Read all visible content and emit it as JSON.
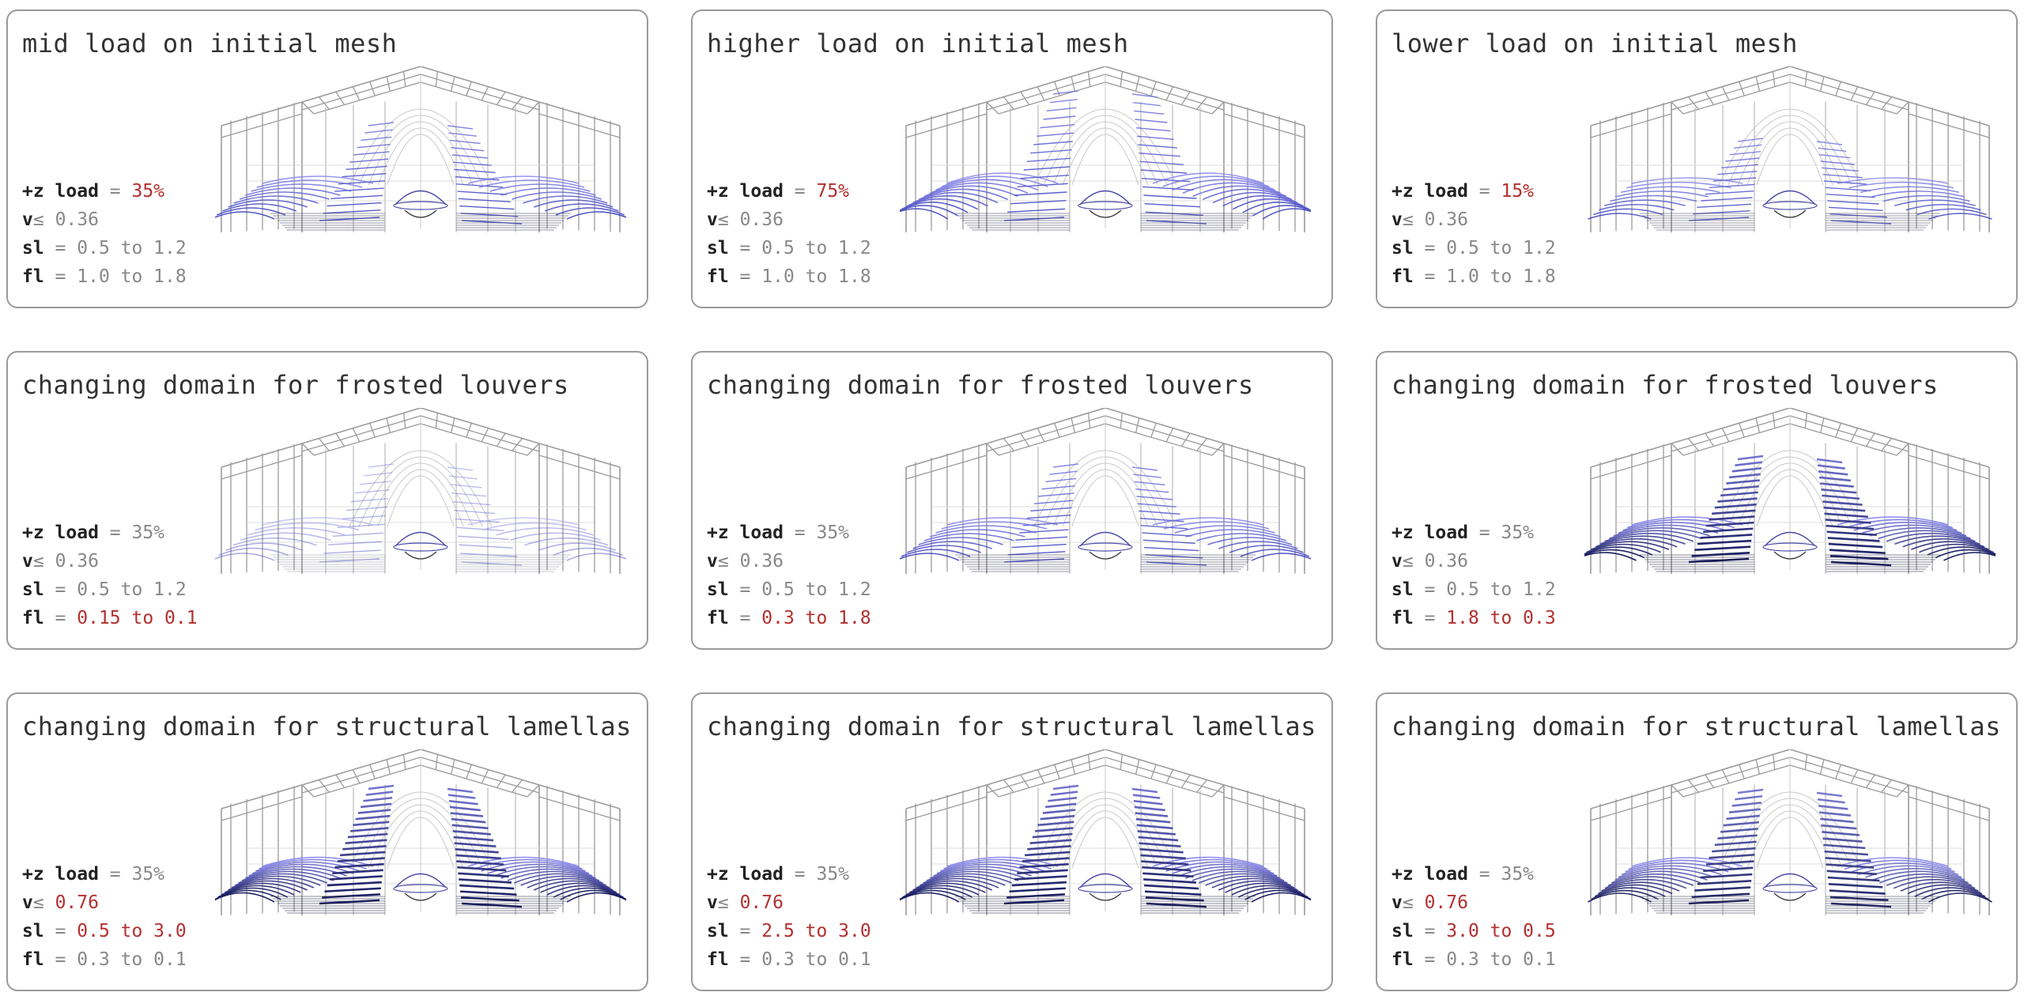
{
  "colors": {
    "highlight": "#b3302f",
    "frame": "#9a9a9a",
    "fan_light": "#7070e8",
    "fan_dark": "#1e2270"
  },
  "panels": [
    {
      "title": "mid load on initial mesh",
      "variant": "standard",
      "params": [
        {
          "key": "+z load",
          "sep": " = ",
          "value": "35%",
          "hl": true
        },
        {
          "key": "v",
          "sep": "≤ ",
          "value": "0.36",
          "hl": false
        },
        {
          "key": "sl",
          "sep": " = ",
          "value": "0.5 to 1.2",
          "hl": false
        },
        {
          "key": "fl",
          "sep": " = ",
          "value": "1.0 to 1.8",
          "hl": false
        }
      ]
    },
    {
      "title": "higher load on initial mesh",
      "variant": "high",
      "params": [
        {
          "key": "+z load",
          "sep": " = ",
          "value": "75%",
          "hl": true
        },
        {
          "key": "v",
          "sep": "≤ ",
          "value": "0.36",
          "hl": false
        },
        {
          "key": "sl",
          "sep": " = ",
          "value": "0.5 to 1.2",
          "hl": false
        },
        {
          "key": "fl",
          "sep": " = ",
          "value": "1.0 to 1.8",
          "hl": false
        }
      ]
    },
    {
      "title": "lower load on initial mesh",
      "variant": "low",
      "params": [
        {
          "key": "+z load",
          "sep": " = ",
          "value": "15%",
          "hl": true
        },
        {
          "key": "v",
          "sep": "≤ ",
          "value": "0.36",
          "hl": false
        },
        {
          "key": "sl",
          "sep": " = ",
          "value": "0.5 to 1.2",
          "hl": false
        },
        {
          "key": "fl",
          "sep": " = ",
          "value": "1.0 to 1.8",
          "hl": false
        }
      ]
    },
    {
      "title": "changing domain for frosted louvers",
      "variant": "faint",
      "params": [
        {
          "key": "+z load",
          "sep": " = ",
          "value": "35%",
          "hl": false
        },
        {
          "key": "v",
          "sep": "≤ ",
          "value": "0.36",
          "hl": false
        },
        {
          "key": "sl",
          "sep": " = ",
          "value": "0.5 to 1.2",
          "hl": false
        },
        {
          "key": "fl",
          "sep": " = ",
          "value": "0.15 to 0.1",
          "hl": true
        }
      ]
    },
    {
      "title": "changing domain for frosted louvers",
      "variant": "standard",
      "params": [
        {
          "key": "+z load",
          "sep": " = ",
          "value": "35%",
          "hl": false
        },
        {
          "key": "v",
          "sep": "≤ ",
          "value": "0.36",
          "hl": false
        },
        {
          "key": "sl",
          "sep": " = ",
          "value": "0.5 to 1.2",
          "hl": false
        },
        {
          "key": "fl",
          "sep": " = ",
          "value": "0.3 to 1.8",
          "hl": true
        }
      ]
    },
    {
      "title": "changing domain for frosted louvers",
      "variant": "heavy",
      "params": [
        {
          "key": "+z load",
          "sep": " = ",
          "value": "35%",
          "hl": false
        },
        {
          "key": "v",
          "sep": "≤ ",
          "value": "0.36",
          "hl": false
        },
        {
          "key": "sl",
          "sep": " = ",
          "value": "0.5 to 1.2",
          "hl": false
        },
        {
          "key": "fl",
          "sep": " = ",
          "value": "1.8 to 0.3",
          "hl": true
        }
      ]
    },
    {
      "title": "changing domain for structural lamellas",
      "variant": "dark",
      "params": [
        {
          "key": "+z load",
          "sep": " = ",
          "value": "35%",
          "hl": false
        },
        {
          "key": "v",
          "sep": "≤ ",
          "value": "0.76",
          "hl": true
        },
        {
          "key": "sl",
          "sep": " = ",
          "value": "0.5 to 3.0",
          "hl": true
        },
        {
          "key": "fl",
          "sep": " = ",
          "value": "0.3 to 0.1",
          "hl": false
        }
      ]
    },
    {
      "title": "changing domain for structural lamellas",
      "variant": "dark",
      "params": [
        {
          "key": "+z load",
          "sep": " = ",
          "value": "35%",
          "hl": false
        },
        {
          "key": "v",
          "sep": "≤ ",
          "value": "0.76",
          "hl": true
        },
        {
          "key": "sl",
          "sep": " = ",
          "value": "2.5 to 3.0",
          "hl": true
        },
        {
          "key": "fl",
          "sep": " = ",
          "value": "0.3 to 0.1",
          "hl": false
        }
      ]
    },
    {
      "title": "changing domain for structural lamellas",
      "variant": "dark2",
      "params": [
        {
          "key": "+z load",
          "sep": " = ",
          "value": "35%",
          "hl": false
        },
        {
          "key": "v",
          "sep": "≤ ",
          "value": "0.76",
          "hl": true
        },
        {
          "key": "sl",
          "sep": " = ",
          "value": "3.0 to 0.5",
          "hl": true
        },
        {
          "key": "fl",
          "sep": " = ",
          "value": "0.3 to 0.1",
          "hl": false
        }
      ]
    }
  ]
}
